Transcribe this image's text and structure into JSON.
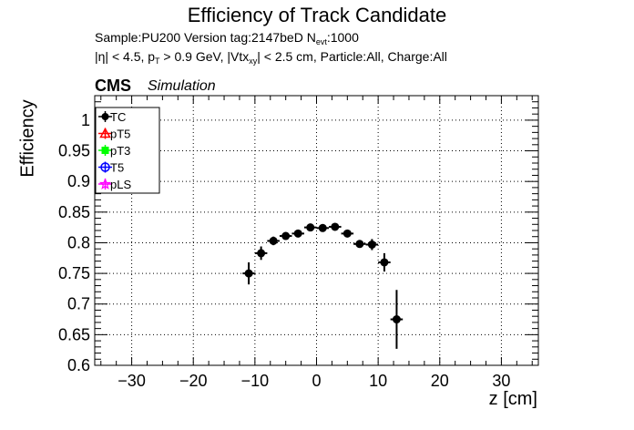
{
  "header": {
    "title": "Efficiency of Track Candidate",
    "sample_prefix": "Sample:PU200   Version tag:2147beD  N",
    "sample_sub": "evt",
    "sample_suffix": ":1000",
    "cut_p1": "|η| < 4.5, p",
    "cut_sub1": "T",
    "cut_p2": " > 0.9 GeV, |Vtx",
    "cut_sub2": "xy",
    "cut_p3": "| < 2.5 cm, Particle:All, Charge:All",
    "cms": "CMS",
    "simulation": "Simulation"
  },
  "colors": {
    "TC": "#000000",
    "pT5": "#ff0000",
    "pT3": "#00ff00",
    "T5": "#0000ff",
    "pLS": "#ff00ff"
  },
  "chart_data": {
    "type": "scatter",
    "title": "Efficiency of Track Candidate",
    "xlabel": "z [cm]",
    "ylabel": "Efficiency",
    "xlim": [
      -36,
      36
    ],
    "ylim": [
      0.6,
      1.04
    ],
    "xticks": [
      -30,
      -20,
      -10,
      0,
      10,
      20,
      30
    ],
    "xtick_labels": [
      "−30",
      "−20",
      "−10",
      "0",
      "10",
      "20",
      "30"
    ],
    "yticks": [
      0.6,
      0.65,
      0.7,
      0.75,
      0.8,
      0.85,
      0.9,
      0.95,
      1
    ],
    "ytick_labels": [
      "0.6",
      "0.65",
      "0.7",
      "0.75",
      "0.8",
      "0.85",
      "0.9",
      "0.95",
      "1"
    ],
    "grid": true,
    "legend": [
      "TC",
      "pT5",
      "pT3",
      "T5",
      "pLS"
    ],
    "legend_position": "top-left",
    "series": [
      {
        "name": "TC",
        "x": [
          -11,
          -9,
          -7,
          -5,
          -3,
          -1,
          1,
          3,
          5,
          7,
          9,
          11,
          13
        ],
        "y": [
          0.75,
          0.783,
          0.803,
          0.811,
          0.815,
          0.825,
          0.824,
          0.826,
          0.815,
          0.798,
          0.797,
          0.768,
          0.675
        ],
        "xerr": [
          1,
          1,
          1,
          1,
          1,
          1,
          1,
          1,
          1,
          1,
          1,
          1,
          1
        ],
        "yerr": [
          0.018,
          0.011,
          0.007,
          0.005,
          0.005,
          0.004,
          0.004,
          0.004,
          0.005,
          0.006,
          0.009,
          0.015,
          0.048
        ]
      },
      {
        "name": "pT5",
        "x": [],
        "y": []
      },
      {
        "name": "pT3",
        "x": [],
        "y": []
      },
      {
        "name": "T5",
        "x": [],
        "y": []
      },
      {
        "name": "pLS",
        "x": [],
        "y": []
      }
    ]
  }
}
